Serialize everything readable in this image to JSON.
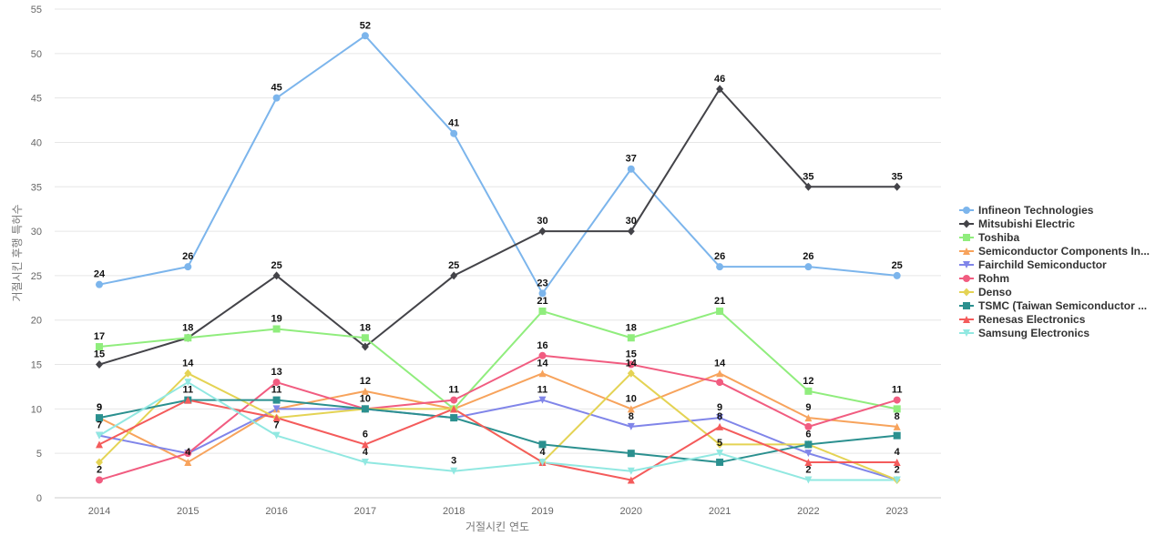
{
  "chart_data": {
    "type": "line",
    "xlabel": "거절시킨 연도",
    "ylabel": "거절시킨 후행 특허수",
    "ylim": [
      0,
      55
    ],
    "yticks": [
      0,
      5,
      10,
      15,
      20,
      25,
      30,
      35,
      40,
      45,
      50,
      55
    ],
    "grid": true,
    "legend_position": "right",
    "categories": [
      "2014",
      "2015",
      "2016",
      "2017",
      "2018",
      "2019",
      "2020",
      "2021",
      "2022",
      "2023"
    ],
    "series": [
      {
        "name": "Infineon Technologies",
        "color": "#7cb5ec",
        "marker": "circle",
        "values": [
          24,
          26,
          45,
          52,
          41,
          23,
          37,
          26,
          26,
          25
        ]
      },
      {
        "name": "Mitsubishi Electric",
        "color": "#434348",
        "marker": "diamond",
        "values": [
          15,
          18,
          25,
          17,
          25,
          30,
          30,
          46,
          35,
          35
        ]
      },
      {
        "name": "Toshiba",
        "color": "#90ed7d",
        "marker": "square",
        "values": [
          17,
          18,
          19,
          18,
          10,
          21,
          18,
          21,
          12,
          10
        ]
      },
      {
        "name": "Semiconductor Components In...",
        "color": "#f7a35c",
        "marker": "triangle",
        "values": [
          9,
          4,
          10,
          12,
          10,
          14,
          10,
          14,
          9,
          8
        ]
      },
      {
        "name": "Fairchild Semiconductor",
        "color": "#8085e9",
        "marker": "triangle-down",
        "values": [
          7,
          5,
          10,
          10,
          9,
          11,
          8,
          9,
          5,
          2
        ]
      },
      {
        "name": "Rohm",
        "color": "#f15c80",
        "marker": "circle",
        "values": [
          2,
          5,
          13,
          10,
          11,
          16,
          15,
          13,
          8,
          11
        ]
      },
      {
        "name": "Denso",
        "color": "#e4d354",
        "marker": "diamond",
        "values": [
          4,
          14,
          9,
          10,
          10,
          4,
          14,
          6,
          6,
          2
        ]
      },
      {
        "name": "TSMC (Taiwan Semiconductor ...",
        "color": "#2b908f",
        "marker": "square",
        "values": [
          9,
          11,
          11,
          10,
          9,
          6,
          5,
          4,
          6,
          7
        ]
      },
      {
        "name": "Renesas Electronics",
        "color": "#f45b5b",
        "marker": "triangle",
        "values": [
          6,
          11,
          9,
          6,
          10,
          4,
          2,
          8,
          4,
          4
        ]
      },
      {
        "name": "Samsung Electronics",
        "color": "#91e8e1",
        "marker": "triangle-down",
        "values": [
          7,
          13,
          7,
          4,
          3,
          4,
          3,
          5,
          2,
          2
        ]
      }
    ],
    "data_labels": [
      {
        "series": 0,
        "points": [
          0,
          1,
          2,
          3,
          4,
          5,
          6,
          7,
          8,
          9
        ]
      },
      {
        "series": 1,
        "points": [
          0,
          2,
          4,
          5,
          6,
          7,
          8,
          9
        ]
      },
      {
        "series": 2,
        "points": [
          0,
          1,
          2,
          3,
          5,
          6,
          7,
          8
        ]
      },
      {
        "series": 3,
        "points": [
          0,
          1,
          3,
          5,
          6,
          7,
          8,
          9
        ]
      },
      {
        "series": 4,
        "points": [
          0,
          5,
          6,
          7
        ]
      },
      {
        "series": 5,
        "points": [
          0,
          2,
          4,
          5,
          6,
          9
        ]
      },
      {
        "series": 6,
        "points": [
          1,
          3,
          5,
          6
        ]
      },
      {
        "series": 7,
        "points": [
          0,
          1,
          2,
          8
        ]
      },
      {
        "series": 8,
        "points": [
          3,
          7,
          9
        ]
      },
      {
        "series": 9,
        "points": [
          2,
          3,
          4,
          7,
          8,
          9
        ]
      }
    ]
  }
}
